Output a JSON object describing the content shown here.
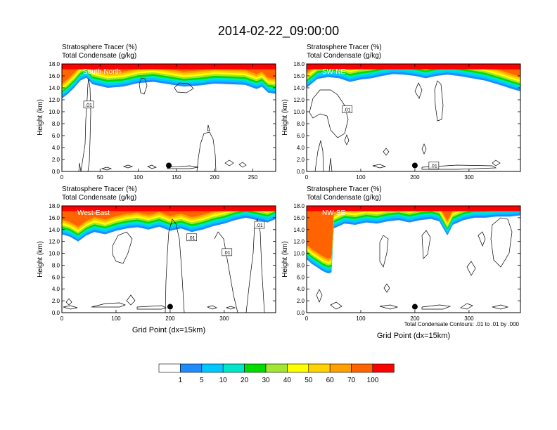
{
  "title": "2014-02-22_09:00:00",
  "footnote": "Total Condensate Contours: .01 to .01 by .000",
  "colors": {
    "levels": [
      "#ffffff",
      "#1e8cff",
      "#00c8ff",
      "#00e6c8",
      "#00dc00",
      "#a0e632",
      "#ffff00",
      "#ffd200",
      "#ffa000",
      "#ff6400",
      "#ff0000"
    ],
    "contour": "#000000"
  },
  "colorbar": {
    "labels": [
      "1",
      "5",
      "10",
      "20",
      "30",
      "40",
      "50",
      "60",
      "70",
      "100"
    ]
  },
  "chart_data": [
    {
      "type": "heatmap",
      "label_top": "Stratosphere Tracer   (%)",
      "label_bottom": "Total Condensate   (g/kg)",
      "panel_label": "South-North",
      "ylabel": "Height (km)",
      "xlabel": "",
      "xlim": [
        0,
        280
      ],
      "ylim": [
        0,
        18
      ],
      "xticks": [
        0,
        50,
        100,
        150,
        200,
        250
      ],
      "xtick_labels": [
        "0",
        "50",
        "100",
        "150",
        "200",
        "250"
      ],
      "yticks": [
        0,
        2,
        4,
        6,
        8,
        10,
        12,
        14,
        16,
        18
      ],
      "ytick_labels": [
        "0.0",
        "2.0",
        "4.0",
        "6.0",
        "8.0",
        "10.0",
        "12.0",
        "14.0",
        "16.0",
        "18.0"
      ],
      "tracer_base_km": [
        [
          0,
          12.2
        ],
        [
          8,
          13.0
        ],
        [
          16,
          14.0
        ],
        [
          24,
          15.2
        ],
        [
          32,
          15.7
        ],
        [
          40,
          14.6
        ],
        [
          60,
          14.0
        ],
        [
          80,
          14.2
        ],
        [
          100,
          14.8
        ],
        [
          120,
          15.0
        ],
        [
          140,
          14.6
        ],
        [
          160,
          14.2
        ],
        [
          180,
          14.4
        ],
        [
          200,
          14.7
        ],
        [
          220,
          14.6
        ],
        [
          240,
          14.5
        ],
        [
          255,
          13.8
        ],
        [
          262,
          14.2
        ],
        [
          270,
          13.2
        ],
        [
          280,
          13.0
        ]
      ],
      "marker": [
        140,
        1.0
      ],
      "contour_labels": [
        {
          "x": 35,
          "y": 11.2,
          "text": ".01"
        }
      ]
    },
    {
      "type": "heatmap",
      "label_top": "Stratosphere Tracer   (%)",
      "label_bottom": "Total Condensate   (g/kg)",
      "panel_label": "SW-NE",
      "ylabel": "Height (km)",
      "xlabel": "",
      "xlim": [
        0,
        395
      ],
      "ylim": [
        0,
        18
      ],
      "xticks": [
        0,
        100,
        200,
        300
      ],
      "xtick_labels": [
        "0",
        "100",
        "200",
        "300"
      ],
      "yticks": [
        0,
        2,
        4,
        6,
        8,
        10,
        12,
        14,
        16,
        18
      ],
      "ytick_labels": [
        "0.0",
        "2.0",
        "4.0",
        "6.0",
        "8.0",
        "10.0",
        "12.0",
        "14.0",
        "16.0",
        "18.0"
      ],
      "tracer_base_km": [
        [
          0,
          14.0
        ],
        [
          20,
          15.5
        ],
        [
          40,
          15.8
        ],
        [
          60,
          15.6
        ],
        [
          80,
          15.0
        ],
        [
          100,
          15.4
        ],
        [
          120,
          15.6
        ],
        [
          140,
          16.0
        ],
        [
          160,
          16.3
        ],
        [
          180,
          16.2
        ],
        [
          200,
          16.0
        ],
        [
          220,
          15.6
        ],
        [
          240,
          16.0
        ],
        [
          260,
          16.2
        ],
        [
          280,
          16.0
        ],
        [
          300,
          15.7
        ],
        [
          330,
          15.2
        ],
        [
          360,
          14.4
        ],
        [
          380,
          13.8
        ],
        [
          395,
          13.4
        ]
      ],
      "marker": [
        200,
        1.0
      ],
      "contour_labels": [
        {
          "x": 75,
          "y": 10.4,
          "text": ".01"
        },
        {
          "x": 235,
          "y": 1.0,
          "text": ".01"
        }
      ]
    },
    {
      "type": "heatmap",
      "label_top": "Stratosphere Tracer   (%)",
      "label_bottom": "Total Condensate   (g/kg)",
      "panel_label": "West-East",
      "ylabel": "Height (km)",
      "xlabel": "Grid Point (dx=15km)",
      "xlim": [
        0,
        395
      ],
      "ylim": [
        0,
        18
      ],
      "xticks": [
        0,
        100,
        200,
        300
      ],
      "xtick_labels": [
        "0",
        "100",
        "200",
        "300"
      ],
      "yticks": [
        0,
        2,
        4,
        6,
        8,
        10,
        12,
        14,
        16,
        18
      ],
      "ytick_labels": [
        "0.0",
        "2.0",
        "4.0",
        "6.0",
        "8.0",
        "10.0",
        "12.0",
        "14.0",
        "16.0",
        "18.0"
      ],
      "tracer_base_km": [
        [
          0,
          13.2
        ],
        [
          15,
          12.8
        ],
        [
          30,
          12.0
        ],
        [
          45,
          13.0
        ],
        [
          60,
          13.6
        ],
        [
          80,
          13.2
        ],
        [
          100,
          13.8
        ],
        [
          120,
          14.2
        ],
        [
          140,
          14.4
        ],
        [
          160,
          14.0
        ],
        [
          180,
          14.5
        ],
        [
          200,
          13.8
        ],
        [
          220,
          14.2
        ],
        [
          240,
          13.6
        ],
        [
          260,
          14.0
        ],
        [
          280,
          14.6
        ],
        [
          300,
          15.0
        ],
        [
          320,
          15.6
        ],
        [
          340,
          16.0
        ],
        [
          360,
          15.6
        ],
        [
          380,
          15.2
        ],
        [
          395,
          15.8
        ]
      ],
      "marker": [
        200,
        1.0
      ],
      "contour_labels": [
        {
          "x": 240,
          "y": 12.7,
          "text": ".01"
        },
        {
          "x": 305,
          "y": 10.2,
          "text": ".01"
        },
        {
          "x": 365,
          "y": 14.8,
          "text": ".01"
        }
      ]
    },
    {
      "type": "heatmap",
      "label_top": "Stratosphere Tracer   (%)",
      "label_bottom": "Total Condensate   (g/kg)",
      "panel_label": "NW-SE",
      "ylabel": "Height (km)",
      "xlabel": "Grid Point (dx=15km)",
      "xlim": [
        0,
        395
      ],
      "ylim": [
        0,
        18
      ],
      "xticks": [
        0,
        100,
        200,
        300
      ],
      "xtick_labels": [
        "0",
        "100",
        "200",
        "300"
      ],
      "yticks": [
        0,
        2,
        4,
        6,
        8,
        10,
        12,
        14,
        16,
        18
      ],
      "ytick_labels": [
        "0.0",
        "2.0",
        "4.0",
        "6.0",
        "8.0",
        "10.0",
        "12.0",
        "14.0",
        "16.0",
        "18.0"
      ],
      "tracer_base_km": [
        [
          0,
          9.0
        ],
        [
          10,
          8.2
        ],
        [
          20,
          7.6
        ],
        [
          30,
          7.0
        ],
        [
          40,
          6.6
        ],
        [
          46,
          6.8
        ],
        [
          50,
          14.2
        ],
        [
          70,
          15.0
        ],
        [
          90,
          14.8
        ],
        [
          110,
          15.2
        ],
        [
          130,
          15.0
        ],
        [
          150,
          15.4
        ],
        [
          170,
          15.6
        ],
        [
          190,
          15.2
        ],
        [
          210,
          15.6
        ],
        [
          230,
          15.8
        ],
        [
          245,
          15.4
        ],
        [
          260,
          13.0
        ],
        [
          270,
          14.8
        ],
        [
          290,
          15.6
        ],
        [
          310,
          16.0
        ],
        [
          330,
          16.0
        ],
        [
          350,
          16.2
        ],
        [
          375,
          16.2
        ],
        [
          395,
          16.4
        ]
      ],
      "marker": [
        200,
        1.0
      ],
      "contour_labels": []
    }
  ]
}
